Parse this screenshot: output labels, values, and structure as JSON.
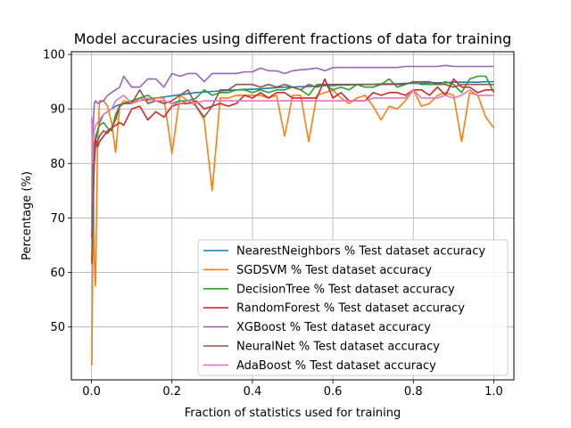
{
  "chart_data": {
    "type": "line",
    "title": "Model accuracies using different fractions of data for training",
    "xlabel": "Fraction of statistics used for training",
    "ylabel": "Percentage (%)",
    "xlim": [
      -0.05,
      1.05
    ],
    "ylim": [
      40.3,
      100.5
    ],
    "grid": true,
    "legend_position": "lower-right",
    "x_ticks": [
      0.0,
      0.2,
      0.4,
      0.6,
      0.8,
      1.0
    ],
    "x_tick_labels": [
      "0.0",
      "0.2",
      "0.4",
      "0.6",
      "0.8",
      "1.0"
    ],
    "y_ticks": [
      50,
      60,
      70,
      80,
      90,
      100
    ],
    "y_tick_labels": [
      "50",
      "60",
      "70",
      "80",
      "90",
      "100"
    ],
    "x": [
      0.001,
      0.003,
      0.005,
      0.007,
      0.01,
      0.015,
      0.02,
      0.03,
      0.04,
      0.05,
      0.06,
      0.07,
      0.08,
      0.1,
      0.12,
      0.14,
      0.16,
      0.18,
      0.2,
      0.22,
      0.24,
      0.26,
      0.28,
      0.3,
      0.32,
      0.34,
      0.36,
      0.38,
      0.4,
      0.42,
      0.44,
      0.46,
      0.48,
      0.5,
      0.52,
      0.54,
      0.56,
      0.58,
      0.6,
      0.62,
      0.64,
      0.66,
      0.68,
      0.7,
      0.72,
      0.74,
      0.76,
      0.78,
      0.8,
      0.82,
      0.84,
      0.86,
      0.88,
      0.9,
      0.92,
      0.94,
      0.96,
      0.98,
      1.0
    ],
    "series": [
      {
        "name": "NearestNeighbors % Test dataset accuracy",
        "color": "#1f77b4",
        "values": [
          66.5,
          70.0,
          78.0,
          82.5,
          84.0,
          86.0,
          87.5,
          89.0,
          89.5,
          90.0,
          90.5,
          90.8,
          91.0,
          91.2,
          91.5,
          91.8,
          92.0,
          92.2,
          92.4,
          92.6,
          92.8,
          93.0,
          93.1,
          93.2,
          93.3,
          93.4,
          93.5,
          93.6,
          93.6,
          93.7,
          93.8,
          93.9,
          94.0,
          94.0,
          94.1,
          94.1,
          94.2,
          94.3,
          94.3,
          94.4,
          94.4,
          94.5,
          94.5,
          94.5,
          94.6,
          94.6,
          94.6,
          94.7,
          94.7,
          94.7,
          94.8,
          94.8,
          94.8,
          94.9,
          94.9,
          94.9,
          94.9,
          95.0,
          95.0
        ]
      },
      {
        "name": "SGDSVM % Test dataset accuracy",
        "color": "#ff7f0e",
        "values": [
          43.0,
          62.0,
          74.0,
          62.5,
          57.5,
          83.0,
          91.5,
          91.5,
          90.5,
          87.5,
          82.0,
          90.5,
          91.5,
          91.0,
          92.0,
          91.5,
          92.0,
          92.0,
          81.8,
          92.5,
          91.5,
          90.5,
          88.0,
          75.0,
          92.0,
          92.0,
          92.5,
          92.5,
          92.5,
          92.5,
          92.0,
          92.5,
          85.0,
          92.5,
          92.5,
          84.0,
          92.5,
          93.0,
          93.5,
          92.0,
          91.0,
          92.0,
          92.5,
          90.5,
          88.0,
          90.5,
          90.0,
          91.5,
          93.5,
          90.5,
          91.0,
          92.5,
          93.0,
          92.5,
          84.0,
          93.0,
          92.5,
          88.5,
          86.5
        ]
      },
      {
        "name": "DecisionTree % Test dataset accuracy",
        "color": "#2ca02c",
        "values": [
          62.0,
          68.0,
          74.0,
          80.0,
          85.0,
          86.0,
          87.0,
          87.5,
          86.5,
          86.0,
          89.0,
          90.5,
          91.0,
          91.5,
          92.0,
          92.5,
          91.5,
          91.5,
          91.0,
          91.5,
          91.5,
          92.0,
          93.5,
          92.5,
          93.0,
          93.0,
          93.5,
          93.5,
          93.0,
          93.5,
          93.0,
          93.5,
          93.5,
          94.0,
          93.5,
          92.5,
          94.5,
          94.5,
          93.5,
          94.0,
          93.5,
          94.5,
          94.0,
          94.0,
          94.5,
          95.5,
          94.0,
          94.5,
          95.0,
          94.5,
          94.5,
          94.5,
          95.0,
          94.5,
          93.0,
          95.5,
          96.0,
          96.0,
          93.0
        ]
      },
      {
        "name": "RandomForest % Test dataset accuracy",
        "color": "#d62728",
        "values": [
          66.5,
          75.0,
          80.0,
          83.5,
          84.5,
          83.0,
          84.0,
          85.0,
          86.0,
          86.5,
          87.0,
          87.5,
          87.0,
          90.0,
          90.5,
          88.0,
          89.5,
          88.5,
          90.5,
          91.0,
          91.0,
          91.5,
          90.0,
          90.5,
          91.0,
          90.5,
          91.0,
          92.5,
          92.0,
          93.0,
          92.0,
          93.0,
          93.0,
          92.0,
          92.0,
          92.0,
          92.0,
          95.5,
          92.0,
          93.0,
          91.5,
          91.5,
          91.5,
          93.0,
          92.5,
          93.0,
          93.0,
          92.5,
          93.5,
          93.5,
          92.5,
          94.0,
          92.5,
          95.5,
          94.0,
          94.0,
          93.0,
          93.5,
          93.5
        ]
      },
      {
        "name": "XGBoost % Test dataset accuracy",
        "color": "#9467bd",
        "values": [
          67.0,
          85.0,
          88.0,
          91.0,
          91.5,
          91.0,
          91.2,
          91.5,
          92.5,
          93.0,
          93.5,
          94.0,
          96.0,
          94.0,
          94.0,
          95.5,
          95.5,
          94.0,
          96.5,
          96.0,
          96.5,
          96.5,
          95.0,
          96.5,
          96.5,
          96.5,
          96.5,
          96.8,
          96.8,
          97.5,
          97.0,
          97.0,
          96.5,
          97.0,
          97.2,
          97.3,
          97.5,
          97.0,
          97.6,
          97.6,
          97.6,
          97.6,
          97.6,
          97.6,
          97.6,
          97.6,
          97.6,
          97.8,
          97.8,
          97.8,
          97.8,
          97.8,
          98.0,
          97.8,
          97.8,
          97.8,
          97.8,
          97.8,
          97.8
        ]
      },
      {
        "name": "NeuralNet % Test dataset accuracy",
        "color": "#8c564b",
        "values": [
          61.5,
          70.0,
          76.0,
          80.0,
          83.0,
          84.0,
          85.0,
          86.0,
          85.5,
          86.5,
          88.0,
          90.5,
          91.0,
          91.0,
          93.5,
          91.0,
          91.5,
          91.0,
          91.5,
          92.5,
          93.5,
          90.5,
          88.5,
          90.5,
          93.5,
          93.5,
          94.5,
          94.5,
          94.5,
          94.0,
          94.5,
          94.0,
          94.5,
          94.0,
          93.5,
          94.5,
          94.0,
          94.5,
          94.5,
          94.5,
          94.5,
          94.5,
          94.5,
          94.5,
          94.5,
          94.5,
          94.5,
          94.5,
          95.0,
          95.0,
          95.0,
          94.5,
          94.5,
          94.0,
          94.5,
          94.5,
          94.5,
          94.5,
          94.5
        ]
      },
      {
        "name": "AdaBoost % Test dataset accuracy",
        "color": "#e377c2",
        "values": [
          88.5,
          80.0,
          85.0,
          86.0,
          87.0,
          87.5,
          88.0,
          89.0,
          89.5,
          90.0,
          91.5,
          92.0,
          92.5,
          91.0,
          91.5,
          92.0,
          91.5,
          91.5,
          91.0,
          91.0,
          91.5,
          91.0,
          91.5,
          91.5,
          91.5,
          91.5,
          91.5,
          91.5,
          91.5,
          91.5,
          91.5,
          91.5,
          91.5,
          91.5,
          91.5,
          91.5,
          91.5,
          91.5,
          91.5,
          91.5,
          91.5,
          91.5,
          91.5,
          92.0,
          92.0,
          92.0,
          92.0,
          92.0,
          93.5,
          92.0,
          92.0,
          92.0,
          92.5,
          92.0,
          92.5,
          93.5,
          92.5,
          92.5,
          92.5
        ]
      }
    ]
  }
}
